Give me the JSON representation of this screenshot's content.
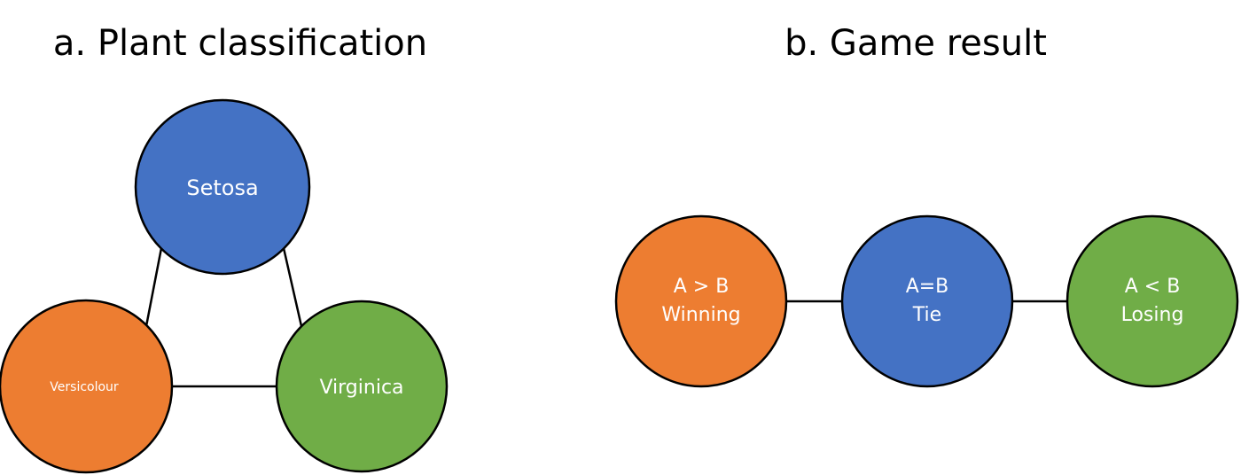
{
  "colors": {
    "orange": "#ED7D31",
    "blue": "#4472C4",
    "green": "#70AD47",
    "background": "#FFFFFF",
    "line": "#000000",
    "node_text": "#FFFFFF"
  },
  "diagram_a": {
    "title": "a. Plant classification",
    "nodes": {
      "setosa": {
        "label": "Setosa",
        "color": "#4472C4"
      },
      "versicolour": {
        "label": "Versicolour",
        "color": "#ED7D31"
      },
      "virginica": {
        "label": "Virginica",
        "color": "#70AD47"
      }
    },
    "edges": [
      [
        "setosa",
        "versicolour"
      ],
      [
        "setosa",
        "virginica"
      ],
      [
        "versicolour",
        "virginica"
      ]
    ]
  },
  "diagram_b": {
    "title": "b. Game result",
    "nodes": {
      "winning": {
        "line1": "A > B",
        "line2": "Winning",
        "color": "#ED7D31"
      },
      "tie": {
        "line1": "A=B",
        "line2": "Tie",
        "color": "#4472C4"
      },
      "losing": {
        "line1": "A < B",
        "line2": "Losing",
        "color": "#70AD47"
      }
    },
    "edges": [
      [
        "winning",
        "tie"
      ],
      [
        "tie",
        "losing"
      ]
    ]
  }
}
